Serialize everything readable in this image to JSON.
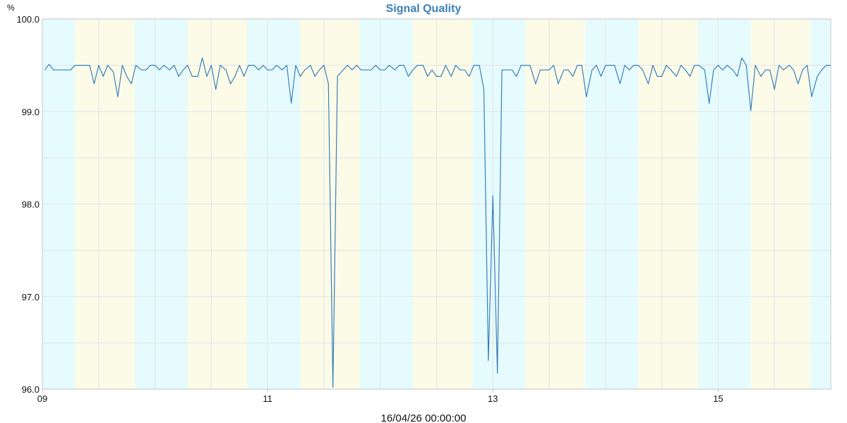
{
  "chart_data": {
    "type": "line",
    "title": "Signal Quality",
    "ylabel": "%",
    "xlabel": "16/04/26 00:00:00",
    "x_tick_labels": [
      "09",
      "11",
      "13",
      "15"
    ],
    "y_tick_labels": [
      "96.0",
      "97.0",
      "98.0",
      "99.0",
      "100.0"
    ],
    "xlim": [
      9.0,
      16.0
    ],
    "ylim": [
      96.0,
      100.0
    ],
    "grid": true,
    "colors": {
      "line": "#3a7fba",
      "grid": "#e2e5e8",
      "band_cyan": "#e6fbfd",
      "band_yellow": "#fbfbe8",
      "axis": "#c5c5c5",
      "title": "#3a80b8"
    },
    "background_bands": [
      {
        "from": 9.0,
        "to": 9.29,
        "color": "cyan"
      },
      {
        "from": 9.29,
        "to": 9.82,
        "color": "yellow"
      },
      {
        "from": 9.82,
        "to": 10.29,
        "color": "cyan"
      },
      {
        "from": 10.29,
        "to": 10.82,
        "color": "yellow"
      },
      {
        "from": 10.82,
        "to": 11.29,
        "color": "cyan"
      },
      {
        "from": 11.29,
        "to": 11.82,
        "color": "yellow"
      },
      {
        "from": 11.82,
        "to": 12.29,
        "color": "cyan"
      },
      {
        "from": 12.29,
        "to": 12.82,
        "color": "yellow"
      },
      {
        "from": 12.82,
        "to": 13.29,
        "color": "cyan"
      },
      {
        "from": 13.29,
        "to": 13.82,
        "color": "yellow"
      },
      {
        "from": 13.82,
        "to": 14.29,
        "color": "cyan"
      },
      {
        "from": 14.29,
        "to": 14.82,
        "color": "yellow"
      },
      {
        "from": 14.82,
        "to": 15.29,
        "color": "cyan"
      },
      {
        "from": 15.29,
        "to": 15.82,
        "color": "yellow"
      },
      {
        "from": 15.82,
        "to": 16.0,
        "color": "cyan"
      }
    ],
    "series": [
      {
        "values": [
          [
            9.02,
            99.45
          ],
          [
            9.06,
            99.51
          ],
          [
            9.1,
            99.45
          ],
          [
            9.15,
            99.45
          ],
          [
            9.2,
            99.45
          ],
          [
            9.25,
            99.45
          ],
          [
            9.29,
            99.5
          ],
          [
            9.33,
            99.5
          ],
          [
            9.38,
            99.5
          ],
          [
            9.42,
            99.5
          ],
          [
            9.46,
            99.3
          ],
          [
            9.5,
            99.5
          ],
          [
            9.54,
            99.38
          ],
          [
            9.58,
            99.5
          ],
          [
            9.63,
            99.43
          ],
          [
            9.67,
            99.16
          ],
          [
            9.71,
            99.5
          ],
          [
            9.75,
            99.38
          ],
          [
            9.79,
            99.3
          ],
          [
            9.83,
            99.5
          ],
          [
            9.88,
            99.45
          ],
          [
            9.92,
            99.45
          ],
          [
            9.96,
            99.5
          ],
          [
            10.0,
            99.5
          ],
          [
            10.04,
            99.45
          ],
          [
            10.08,
            99.5
          ],
          [
            10.13,
            99.45
          ],
          [
            10.17,
            99.5
          ],
          [
            10.21,
            99.38
          ],
          [
            10.25,
            99.45
          ],
          [
            10.29,
            99.5
          ],
          [
            10.33,
            99.38
          ],
          [
            10.38,
            99.38
          ],
          [
            10.42,
            99.58
          ],
          [
            10.46,
            99.38
          ],
          [
            10.5,
            99.5
          ],
          [
            10.54,
            99.24
          ],
          [
            10.58,
            99.5
          ],
          [
            10.63,
            99.45
          ],
          [
            10.67,
            99.3
          ],
          [
            10.71,
            99.38
          ],
          [
            10.75,
            99.5
          ],
          [
            10.79,
            99.38
          ],
          [
            10.83,
            99.5
          ],
          [
            10.88,
            99.5
          ],
          [
            10.92,
            99.45
          ],
          [
            10.96,
            99.5
          ],
          [
            11.0,
            99.45
          ],
          [
            11.04,
            99.45
          ],
          [
            11.08,
            99.5
          ],
          [
            11.13,
            99.45
          ],
          [
            11.17,
            99.5
          ],
          [
            11.21,
            99.09
          ],
          [
            11.25,
            99.5
          ],
          [
            11.29,
            99.38
          ],
          [
            11.33,
            99.45
          ],
          [
            11.38,
            99.5
          ],
          [
            11.42,
            99.38
          ],
          [
            11.46,
            99.45
          ],
          [
            11.5,
            99.5
          ],
          [
            11.54,
            99.3
          ],
          [
            11.58,
            96.02
          ],
          [
            11.62,
            99.38
          ],
          [
            11.67,
            99.45
          ],
          [
            11.71,
            99.5
          ],
          [
            11.75,
            99.45
          ],
          [
            11.79,
            99.5
          ],
          [
            11.83,
            99.45
          ],
          [
            11.88,
            99.45
          ],
          [
            11.92,
            99.45
          ],
          [
            11.96,
            99.5
          ],
          [
            12.0,
            99.45
          ],
          [
            12.04,
            99.45
          ],
          [
            12.08,
            99.5
          ],
          [
            12.13,
            99.45
          ],
          [
            12.17,
            99.5
          ],
          [
            12.21,
            99.5
          ],
          [
            12.25,
            99.38
          ],
          [
            12.29,
            99.45
          ],
          [
            12.33,
            99.5
          ],
          [
            12.38,
            99.5
          ],
          [
            12.42,
            99.38
          ],
          [
            12.46,
            99.45
          ],
          [
            12.5,
            99.38
          ],
          [
            12.54,
            99.38
          ],
          [
            12.58,
            99.5
          ],
          [
            12.63,
            99.38
          ],
          [
            12.67,
            99.5
          ],
          [
            12.71,
            99.45
          ],
          [
            12.75,
            99.45
          ],
          [
            12.79,
            99.38
          ],
          [
            12.83,
            99.5
          ],
          [
            12.88,
            99.5
          ],
          [
            12.92,
            99.24
          ],
          [
            12.96,
            96.31
          ],
          [
            13.0,
            98.09
          ],
          [
            13.04,
            96.17
          ],
          [
            13.08,
            99.45
          ],
          [
            13.13,
            99.45
          ],
          [
            13.17,
            99.45
          ],
          [
            13.21,
            99.38
          ],
          [
            13.25,
            99.5
          ],
          [
            13.29,
            99.5
          ],
          [
            13.33,
            99.5
          ],
          [
            13.38,
            99.3
          ],
          [
            13.42,
            99.45
          ],
          [
            13.46,
            99.45
          ],
          [
            13.5,
            99.45
          ],
          [
            13.54,
            99.5
          ],
          [
            13.58,
            99.3
          ],
          [
            13.63,
            99.45
          ],
          [
            13.67,
            99.45
          ],
          [
            13.71,
            99.38
          ],
          [
            13.75,
            99.5
          ],
          [
            13.79,
            99.5
          ],
          [
            13.83,
            99.16
          ],
          [
            13.88,
            99.45
          ],
          [
            13.92,
            99.5
          ],
          [
            13.96,
            99.38
          ],
          [
            14.0,
            99.5
          ],
          [
            14.04,
            99.5
          ],
          [
            14.08,
            99.5
          ],
          [
            14.13,
            99.3
          ],
          [
            14.17,
            99.5
          ],
          [
            14.21,
            99.45
          ],
          [
            14.25,
            99.5
          ],
          [
            14.29,
            99.5
          ],
          [
            14.33,
            99.45
          ],
          [
            14.38,
            99.3
          ],
          [
            14.42,
            99.5
          ],
          [
            14.46,
            99.38
          ],
          [
            14.5,
            99.38
          ],
          [
            14.54,
            99.5
          ],
          [
            14.58,
            99.45
          ],
          [
            14.63,
            99.38
          ],
          [
            14.67,
            99.5
          ],
          [
            14.71,
            99.45
          ],
          [
            14.75,
            99.38
          ],
          [
            14.79,
            99.5
          ],
          [
            14.83,
            99.5
          ],
          [
            14.88,
            99.45
          ],
          [
            14.92,
            99.09
          ],
          [
            14.96,
            99.45
          ],
          [
            15.0,
            99.5
          ],
          [
            15.04,
            99.45
          ],
          [
            15.08,
            99.5
          ],
          [
            15.13,
            99.45
          ],
          [
            15.17,
            99.38
          ],
          [
            15.21,
            99.58
          ],
          [
            15.25,
            99.5
          ],
          [
            15.29,
            99.01
          ],
          [
            15.33,
            99.5
          ],
          [
            15.38,
            99.38
          ],
          [
            15.42,
            99.45
          ],
          [
            15.46,
            99.45
          ],
          [
            15.5,
            99.24
          ],
          [
            15.54,
            99.5
          ],
          [
            15.58,
            99.45
          ],
          [
            15.63,
            99.5
          ],
          [
            15.67,
            99.45
          ],
          [
            15.71,
            99.3
          ],
          [
            15.75,
            99.45
          ],
          [
            15.79,
            99.5
          ],
          [
            15.83,
            99.16
          ],
          [
            15.88,
            99.38
          ],
          [
            15.92,
            99.45
          ],
          [
            15.96,
            99.5
          ],
          [
            16.0,
            99.5
          ]
        ]
      }
    ]
  }
}
